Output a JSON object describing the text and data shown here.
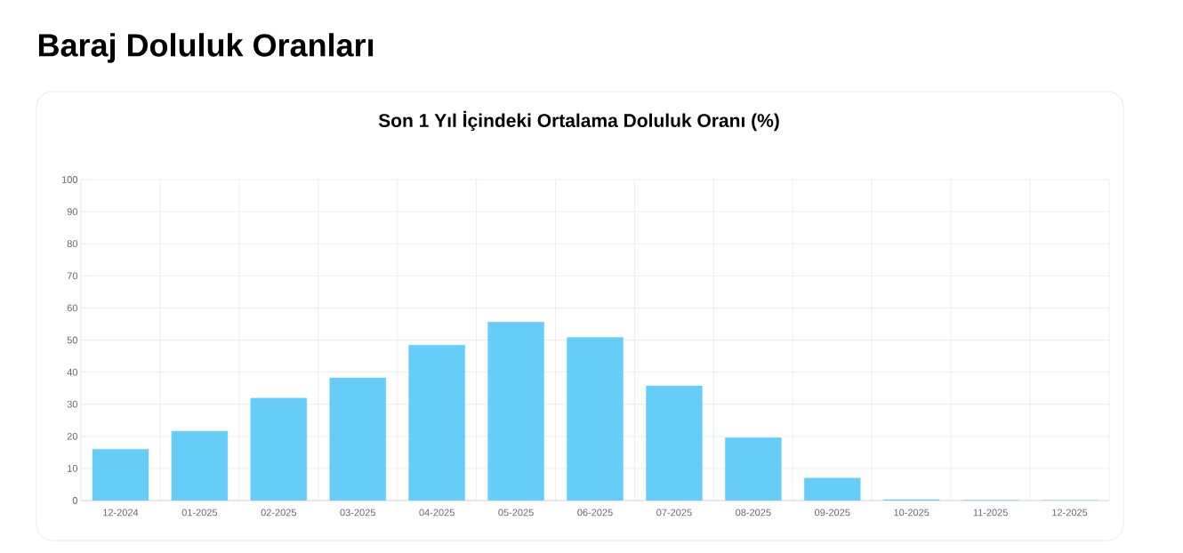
{
  "chart_data": {
    "type": "bar",
    "title": "Baraj Doluluk Oranları",
    "subtitle": "Son 1 Yıl İçindeki Ortalama Doluluk Oranı (%)",
    "categories": [
      "12-2024",
      "01-2025",
      "02-2025",
      "03-2025",
      "04-2025",
      "05-2025",
      "06-2025",
      "07-2025",
      "08-2025",
      "09-2025",
      "10-2025",
      "11-2025",
      "12-2025"
    ],
    "values": [
      16.0,
      21.6,
      31.9,
      38.2,
      48.4,
      55.6,
      50.8,
      35.7,
      19.6,
      7.0,
      0.3,
      0.1,
      0
    ],
    "color": "#66cdf8",
    "ylim": [
      0,
      100
    ],
    "yticks": [
      0,
      10,
      20,
      30,
      40,
      50,
      60,
      70,
      80,
      90,
      100
    ],
    "grid": true,
    "legend": false
  }
}
